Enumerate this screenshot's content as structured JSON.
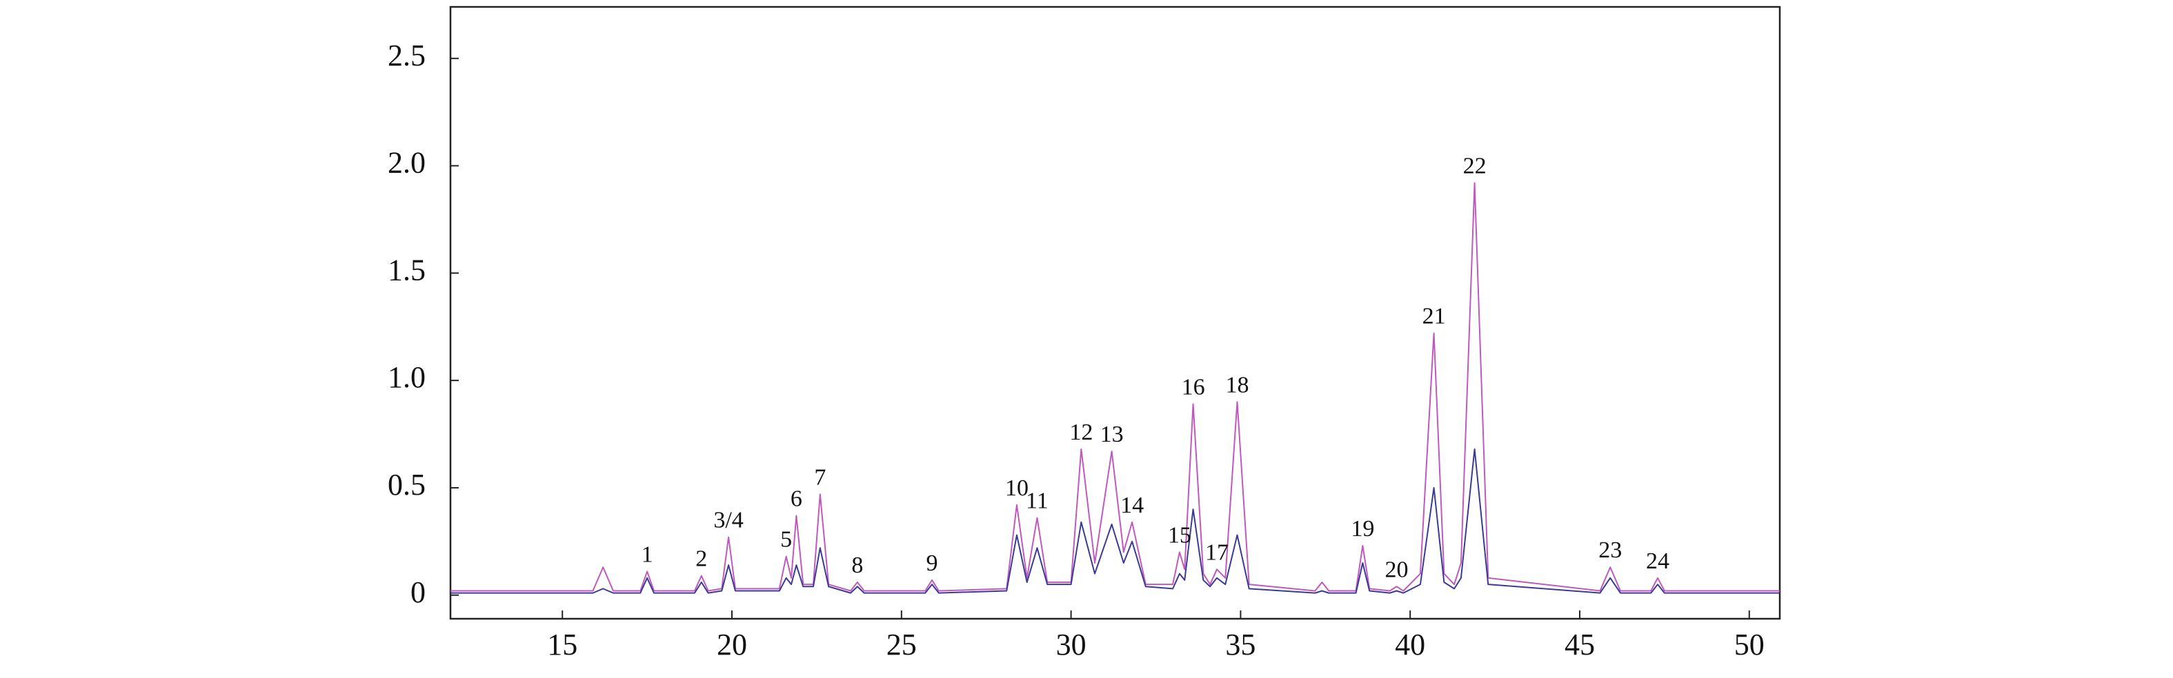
{
  "chart_data": {
    "type": "line",
    "x": [
      11.7,
      15.9,
      16.2,
      16.5,
      17.3,
      17.5,
      17.7,
      18.9,
      19.1,
      19.3,
      19.7,
      19.9,
      20.1,
      21.4,
      21.6,
      21.75,
      21.9,
      22.1,
      22.4,
      22.6,
      22.85,
      23.5,
      23.7,
      23.9,
      25.7,
      25.9,
      26.1,
      28.1,
      28.4,
      28.7,
      29.0,
      29.3,
      30.0,
      30.3,
      30.7,
      31.2,
      31.55,
      31.8,
      32.2,
      33.0,
      33.2,
      33.35,
      33.6,
      33.9,
      34.1,
      34.3,
      34.55,
      34.9,
      35.25,
      37.2,
      37.4,
      37.6,
      38.4,
      38.6,
      38.8,
      39.4,
      39.6,
      39.8,
      40.3,
      40.7,
      41.0,
      41.3,
      41.5,
      41.9,
      42.3,
      45.6,
      45.9,
      46.2,
      47.1,
      47.3,
      47.5,
      50.9
    ],
    "series": [
      {
        "color": "#c058c0",
        "values": [
          0.02,
          0.02,
          0.13,
          0.02,
          0.02,
          0.11,
          0.02,
          0.02,
          0.09,
          0.02,
          0.03,
          0.27,
          0.03,
          0.03,
          0.18,
          0.08,
          0.37,
          0.05,
          0.05,
          0.47,
          0.05,
          0.02,
          0.06,
          0.02,
          0.02,
          0.07,
          0.02,
          0.03,
          0.42,
          0.08,
          0.36,
          0.06,
          0.06,
          0.68,
          0.15,
          0.67,
          0.2,
          0.34,
          0.05,
          0.05,
          0.2,
          0.12,
          0.89,
          0.1,
          0.05,
          0.12,
          0.08,
          0.9,
          0.05,
          0.02,
          0.06,
          0.02,
          0.02,
          0.23,
          0.03,
          0.02,
          0.04,
          0.02,
          0.1,
          1.22,
          0.1,
          0.05,
          0.15,
          1.92,
          0.08,
          0.02,
          0.13,
          0.02,
          0.02,
          0.08,
          0.02,
          0.02
        ]
      },
      {
        "color": "#3a3a96",
        "values": [
          0.01,
          0.01,
          0.03,
          0.01,
          0.01,
          0.08,
          0.01,
          0.01,
          0.06,
          0.01,
          0.02,
          0.14,
          0.02,
          0.02,
          0.08,
          0.05,
          0.14,
          0.04,
          0.04,
          0.22,
          0.04,
          0.01,
          0.04,
          0.01,
          0.01,
          0.05,
          0.01,
          0.02,
          0.28,
          0.06,
          0.22,
          0.05,
          0.05,
          0.34,
          0.1,
          0.33,
          0.15,
          0.25,
          0.04,
          0.03,
          0.1,
          0.07,
          0.4,
          0.07,
          0.04,
          0.08,
          0.05,
          0.28,
          0.03,
          0.01,
          0.02,
          0.01,
          0.01,
          0.15,
          0.02,
          0.01,
          0.02,
          0.01,
          0.05,
          0.5,
          0.06,
          0.03,
          0.08,
          0.68,
          0.05,
          0.01,
          0.08,
          0.01,
          0.01,
          0.05,
          0.01,
          0.01
        ]
      }
    ],
    "annotations": [
      {
        "text": "1",
        "x": 17.5
      },
      {
        "text": "2",
        "x": 19.1
      },
      {
        "text": "3/4",
        "x": 19.9
      },
      {
        "text": "5",
        "x": 21.6
      },
      {
        "text": "6",
        "x": 21.9
      },
      {
        "text": "7",
        "x": 22.6
      },
      {
        "text": "8",
        "x": 23.7
      },
      {
        "text": "9",
        "x": 25.9
      },
      {
        "text": "10",
        "x": 28.4
      },
      {
        "text": "11",
        "x": 29.0
      },
      {
        "text": "12",
        "x": 30.3
      },
      {
        "text": "13",
        "x": 31.2
      },
      {
        "text": "14",
        "x": 31.8
      },
      {
        "text": "15",
        "x": 33.2
      },
      {
        "text": "16",
        "x": 33.6
      },
      {
        "text": "17",
        "x": 34.3
      },
      {
        "text": "18",
        "x": 34.9
      },
      {
        "text": "19",
        "x": 38.6
      },
      {
        "text": "20",
        "x": 39.6
      },
      {
        "text": "21",
        "x": 40.7
      },
      {
        "text": "22",
        "x": 41.9
      },
      {
        "text": "23",
        "x": 45.9
      },
      {
        "text": "24",
        "x": 47.3
      }
    ],
    "xlim": [
      11.7,
      50.9
    ],
    "xticks": [
      15,
      20,
      25,
      30,
      35,
      40,
      45,
      50
    ],
    "ylim": [
      -0.11,
      2.74
    ],
    "yticks": [
      0,
      0.5,
      {
        "value": 1,
        "label": "1.0"
      },
      1.5,
      {
        "value": 2,
        "label": "2.0"
      },
      2.5
    ]
  }
}
